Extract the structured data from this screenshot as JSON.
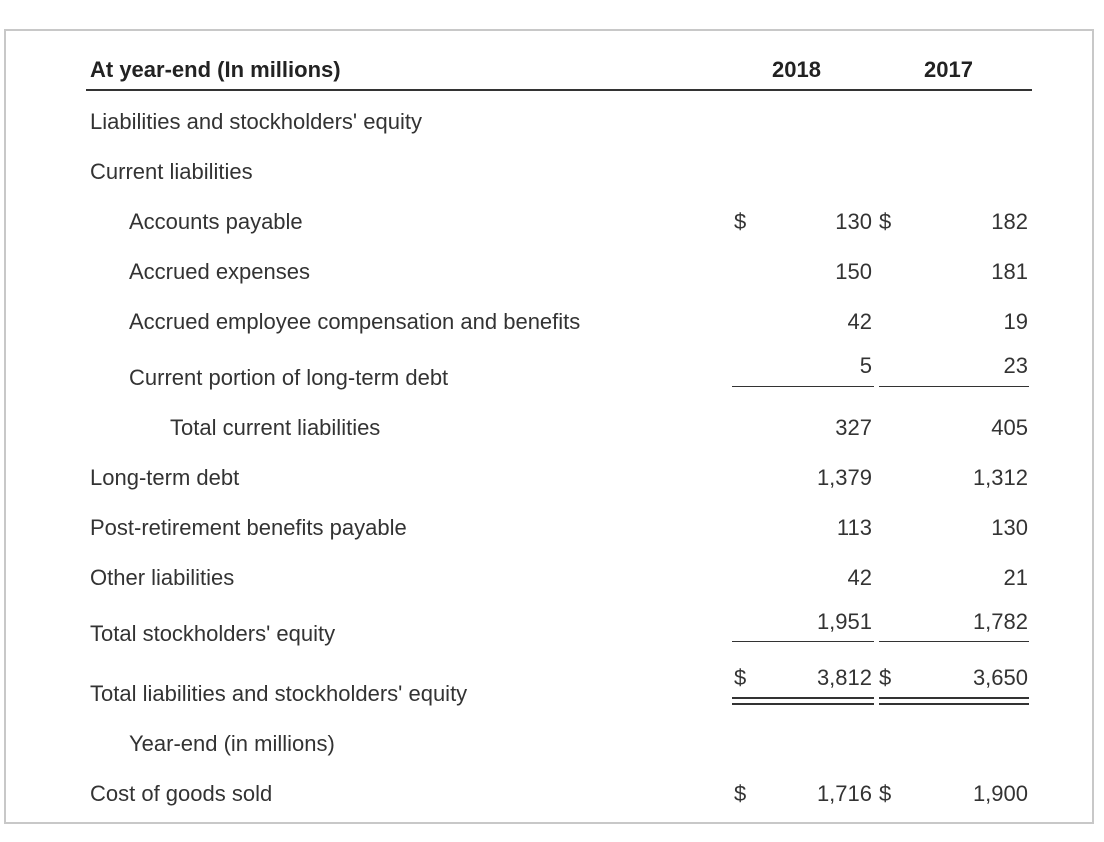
{
  "header": {
    "title": "At year-end (In millions)",
    "col_2018": "2018",
    "col_2017": "2017"
  },
  "currency_symbol": "$",
  "rows": {
    "liab_equity": {
      "label": "Liabilities and stockholders' equity"
    },
    "current_liab": {
      "label": "Current liabilities"
    },
    "accounts_payable": {
      "label": "Accounts payable",
      "v2018": "130",
      "v2017": "182"
    },
    "accrued_expenses": {
      "label": "Accrued expenses",
      "v2018": "150",
      "v2017": "181"
    },
    "accrued_comp": {
      "label": "Accrued employee compensation and benefits",
      "v2018": "42",
      "v2017": "19"
    },
    "current_ltd": {
      "label": "Current portion of long-term debt",
      "v2018": "5",
      "v2017": "23"
    },
    "total_current": {
      "label": "Total current liabilities",
      "v2018": "327",
      "v2017": "405"
    },
    "long_term_debt": {
      "label": "Long-term debt",
      "v2018": "1,379",
      "v2017": "1,312"
    },
    "post_retirement": {
      "label": "Post-retirement benefits payable",
      "v2018": "113",
      "v2017": "130"
    },
    "other_liab": {
      "label": "Other liabilities",
      "v2018": "42",
      "v2017": "21"
    },
    "total_equity": {
      "label": "Total stockholders' equity",
      "v2018": "1,951",
      "v2017": "1,782"
    },
    "total_liab_equity": {
      "label": "Total liabilities and stockholders' equity",
      "v2018": "3,812",
      "v2017": "3,650"
    },
    "year_end": {
      "label": "Year-end (in millions)"
    },
    "cogs": {
      "label": "Cost of goods sold",
      "v2018": "1,716",
      "v2017": "1,900"
    }
  }
}
